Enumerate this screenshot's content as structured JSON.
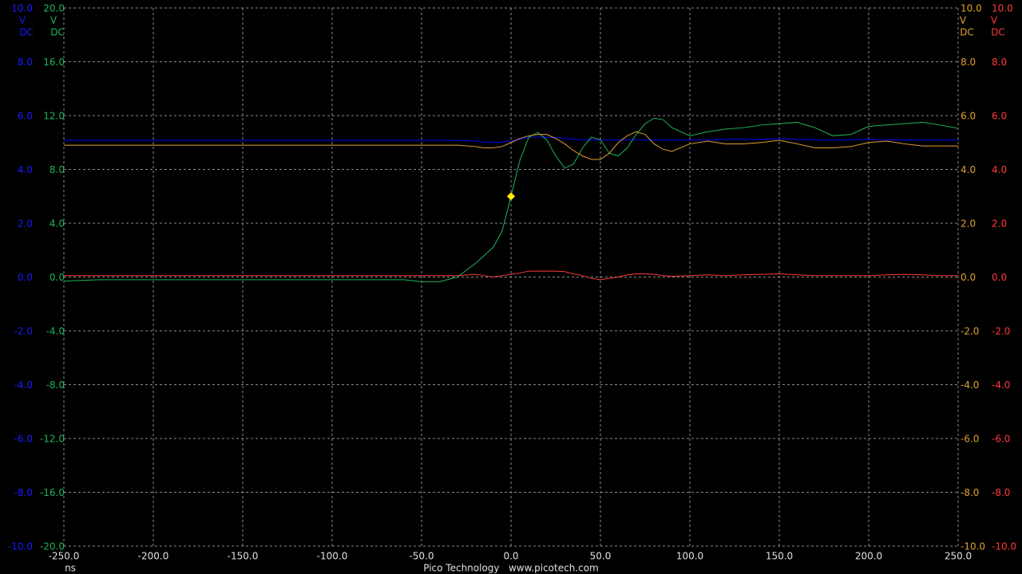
{
  "chart_data": {
    "type": "line",
    "x_unit": "ns",
    "footer": "Pico Technology   www.picotech.com",
    "grid": true,
    "xlim": [
      -250,
      250
    ],
    "xticks": [
      {
        "value": -250,
        "label": "-250.0"
      },
      {
        "value": -200,
        "label": "-200.0"
      },
      {
        "value": -150,
        "label": "-150.0"
      },
      {
        "value": -100,
        "label": "-100.0"
      },
      {
        "value": -50,
        "label": "-50.0"
      },
      {
        "value": 0,
        "label": "0.0"
      },
      {
        "value": 50,
        "label": "50.0"
      },
      {
        "value": 100,
        "label": "100.0"
      },
      {
        "value": 150,
        "label": "150.0"
      },
      {
        "value": 200,
        "label": "200.0"
      },
      {
        "value": 250,
        "label": "250.0"
      }
    ],
    "axes": [
      {
        "color": "#1a1aff",
        "unit": "V",
        "coupling": "DC",
        "ylim": [
          -10,
          10
        ],
        "yticks": [
          {
            "value": 10,
            "label": "10.0"
          },
          {
            "value": 8,
            "label": "8.0"
          },
          {
            "value": 6,
            "label": "6.0"
          },
          {
            "value": 4,
            "label": "4.0"
          },
          {
            "value": 2,
            "label": "2.0"
          },
          {
            "value": 0,
            "label": "0.0"
          },
          {
            "value": -2,
            "label": "-2.0"
          },
          {
            "value": -4,
            "label": "-4.0"
          },
          {
            "value": -6,
            "label": "-6.0"
          },
          {
            "value": -8,
            "label": "-8.0"
          },
          {
            "value": -10,
            "label": "-10.0"
          }
        ]
      },
      {
        "color": "#20b35a",
        "unit": "V",
        "coupling": "DC",
        "ylim": [
          -20,
          20
        ],
        "yticks": [
          {
            "value": 20,
            "label": "20.0"
          },
          {
            "value": 16,
            "label": "16.0"
          },
          {
            "value": 12,
            "label": "12.0"
          },
          {
            "value": 8,
            "label": "8.0"
          },
          {
            "value": 4,
            "label": "4.0"
          },
          {
            "value": 0,
            "label": "0.0"
          },
          {
            "value": -4,
            "label": "-4.0"
          },
          {
            "value": -8,
            "label": "-8.0"
          },
          {
            "value": -12,
            "label": "-12.0"
          },
          {
            "value": -16,
            "label": "-16.0"
          },
          {
            "value": -20,
            "label": "-20.0"
          }
        ]
      },
      {
        "color": "#e0a030",
        "unit": "V",
        "coupling": "DC",
        "ylim": [
          -10,
          10
        ],
        "yticks": [
          {
            "value": 10,
            "label": "10.0"
          },
          {
            "value": 8,
            "label": "8.0"
          },
          {
            "value": 6,
            "label": "6.0"
          },
          {
            "value": 4,
            "label": "4.0"
          },
          {
            "value": 2,
            "label": "2.0"
          },
          {
            "value": 0,
            "label": "0.0"
          },
          {
            "value": -2,
            "label": "-2.0"
          },
          {
            "value": -4,
            "label": "-4.0"
          },
          {
            "value": -6,
            "label": "-6.0"
          },
          {
            "value": -8,
            "label": "-8.0"
          },
          {
            "value": -10,
            "label": "-10.0"
          }
        ]
      },
      {
        "color": "#ff3a3a",
        "unit": "V",
        "coupling": "DC",
        "ylim": [
          -10,
          10
        ],
        "yticks": [
          {
            "value": 10,
            "label": "10.0"
          },
          {
            "value": 8,
            "label": "8.0"
          },
          {
            "value": 6,
            "label": "6.0"
          },
          {
            "value": 4,
            "label": "4.0"
          },
          {
            "value": 2,
            "label": "2.0"
          },
          {
            "value": 0,
            "label": "0.0"
          },
          {
            "value": -2,
            "label": "-2.0"
          },
          {
            "value": -4,
            "label": "-4.0"
          },
          {
            "value": -6,
            "label": "-6.0"
          },
          {
            "value": -8,
            "label": "-8.0"
          },
          {
            "value": -10,
            "label": "-10.0"
          }
        ]
      }
    ],
    "x": [
      -250,
      -230,
      -200,
      -150,
      -100,
      -60,
      -50,
      -40,
      -30,
      -20,
      -15,
      -10,
      -5,
      0,
      5,
      10,
      15,
      20,
      25,
      30,
      35,
      40,
      45,
      50,
      55,
      60,
      65,
      70,
      75,
      80,
      85,
      90,
      100,
      110,
      120,
      130,
      140,
      150,
      160,
      170,
      180,
      190,
      200,
      210,
      220,
      230,
      240,
      250
    ],
    "series": [
      {
        "color": "#0000ff",
        "axis": 0,
        "values": [
          5.08,
          5.08,
          5.08,
          5.08,
          5.08,
          5.08,
          5.08,
          5.08,
          5.08,
          5.05,
          5.02,
          5.0,
          5.02,
          5.05,
          5.12,
          5.2,
          5.2,
          5.2,
          5.18,
          5.15,
          5.12,
          5.1,
          5.1,
          5.1,
          5.1,
          5.1,
          5.1,
          5.1,
          5.1,
          5.1,
          5.1,
          5.1,
          5.1,
          5.1,
          5.12,
          5.12,
          5.12,
          5.15,
          5.12,
          5.1,
          5.1,
          5.1,
          5.12,
          5.1,
          5.1,
          5.1,
          5.1,
          5.1
        ]
      },
      {
        "color": "#20b35a",
        "axis": 1,
        "values": [
          -0.3,
          -0.2,
          -0.2,
          -0.2,
          -0.2,
          -0.2,
          -0.35,
          -0.35,
          0,
          1.0,
          1.6,
          2.2,
          3.4,
          6.0,
          8.7,
          10.4,
          10.75,
          10.2,
          9.0,
          8.1,
          8.4,
          9.6,
          10.4,
          10.2,
          9.2,
          9.0,
          9.6,
          10.6,
          11.4,
          11.8,
          11.7,
          11.1,
          10.5,
          10.8,
          11.0,
          11.1,
          11.3,
          11.4,
          11.5,
          11.1,
          10.5,
          10.6,
          11.2,
          11.3,
          11.4,
          11.5,
          11.3,
          11.05
        ]
      },
      {
        "color": "#e0a030",
        "axis": 2,
        "values": [
          4.9,
          4.9,
          4.9,
          4.9,
          4.9,
          4.9,
          4.9,
          4.9,
          4.9,
          4.85,
          4.8,
          4.8,
          4.85,
          5.0,
          5.15,
          5.25,
          5.3,
          5.3,
          5.15,
          4.95,
          4.7,
          4.5,
          4.37,
          4.37,
          4.6,
          5.0,
          5.25,
          5.4,
          5.3,
          4.95,
          4.75,
          4.67,
          4.95,
          5.05,
          4.95,
          4.95,
          5.0,
          5.08,
          4.95,
          4.8,
          4.8,
          4.85,
          5.0,
          5.05,
          4.95,
          4.87,
          4.87,
          4.87
        ]
      },
      {
        "color": "#ff3a3a",
        "axis": 3,
        "values": [
          0.05,
          0.05,
          0.05,
          0.05,
          0.05,
          0.05,
          0.05,
          0.05,
          0.05,
          0.1,
          0.05,
          0.0,
          0.05,
          0.1,
          0.15,
          0.22,
          0.22,
          0.22,
          0.22,
          0.2,
          0.12,
          0.05,
          -0.05,
          -0.1,
          -0.05,
          0.0,
          0.08,
          0.12,
          0.12,
          0.1,
          0.05,
          0.03,
          0.05,
          0.08,
          0.05,
          0.08,
          0.1,
          0.12,
          0.08,
          0.05,
          0.05,
          0.05,
          0.05,
          0.08,
          0.1,
          0.08,
          0.05,
          0.05
        ]
      }
    ],
    "trigger": {
      "x": 0,
      "value": 6.0,
      "axis": 1,
      "color": "#ffee00"
    }
  }
}
